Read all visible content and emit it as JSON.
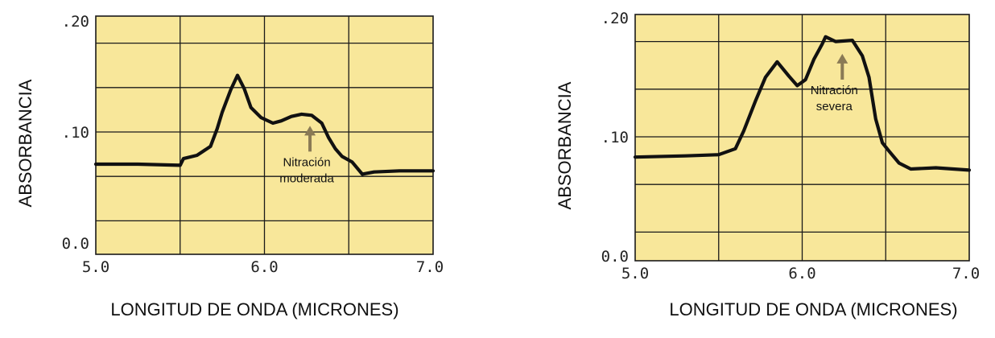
{
  "colors": {
    "plot_bg": "#f8e79a",
    "grid": "#1a1a1a",
    "curve": "#111111",
    "arrow": "#8a7a55"
  },
  "chart_data": [
    {
      "type": "line",
      "xlabel": "LONGITUD DE ONDA (MICRONES)",
      "ylabel": "ABSORBANCIA",
      "xlim": [
        5.0,
        7.0
      ],
      "ylim": [
        0.0,
        0.2
      ],
      "x_ticks": [
        "5.0",
        "6.0",
        "7.0"
      ],
      "y_ticks": [
        "0.0",
        ".10",
        ".20"
      ],
      "grid": true,
      "series": [
        {
          "x": [
            5.0,
            5.25,
            5.5,
            5.52,
            5.6,
            5.68,
            5.72,
            5.75,
            5.8,
            5.84,
            5.88,
            5.92,
            5.98,
            6.05,
            6.1,
            6.16,
            6.22,
            6.28,
            6.34,
            6.38,
            6.42,
            6.46,
            6.52,
            6.58,
            6.65,
            6.8,
            7.0
          ],
          "y": [
            0.071,
            0.071,
            0.07,
            0.076,
            0.079,
            0.087,
            0.103,
            0.118,
            0.138,
            0.151,
            0.139,
            0.122,
            0.113,
            0.108,
            0.11,
            0.114,
            0.116,
            0.115,
            0.108,
            0.095,
            0.085,
            0.078,
            0.073,
            0.062,
            0.064,
            0.065,
            0.065
          ]
        }
      ],
      "annotations": [
        {
          "text": "Nitración moderada",
          "lines": [
            "Nitración",
            "moderada"
          ],
          "x": 6.27,
          "y": 0.107
        }
      ]
    },
    {
      "type": "line",
      "xlabel": "LONGITUD DE ONDA (MICRONES)",
      "ylabel": "ABSORBANCIA",
      "xlim": [
        5.0,
        7.0
      ],
      "ylim": [
        0.0,
        0.2
      ],
      "x_ticks": [
        "5.0",
        "6.0",
        "7.0"
      ],
      "y_ticks": [
        "0.0",
        ".10",
        ".20"
      ],
      "grid": true,
      "series": [
        {
          "x": [
            5.0,
            5.3,
            5.5,
            5.6,
            5.65,
            5.72,
            5.78,
            5.85,
            5.92,
            5.97,
            6.02,
            6.07,
            6.12,
            6.14,
            6.2,
            6.3,
            6.36,
            6.4,
            6.44,
            6.48,
            6.52,
            6.58,
            6.65,
            6.8,
            7.0
          ],
          "y": [
            0.083,
            0.084,
            0.085,
            0.09,
            0.105,
            0.13,
            0.15,
            0.163,
            0.151,
            0.143,
            0.148,
            0.165,
            0.178,
            0.184,
            0.18,
            0.181,
            0.168,
            0.15,
            0.115,
            0.095,
            0.088,
            0.078,
            0.073,
            0.074,
            0.072
          ]
        }
      ],
      "annotations": [
        {
          "text": "Nitración severa",
          "lines": [
            "Nitración",
            "severa"
          ],
          "x": 6.24,
          "y": 0.171
        }
      ]
    }
  ]
}
